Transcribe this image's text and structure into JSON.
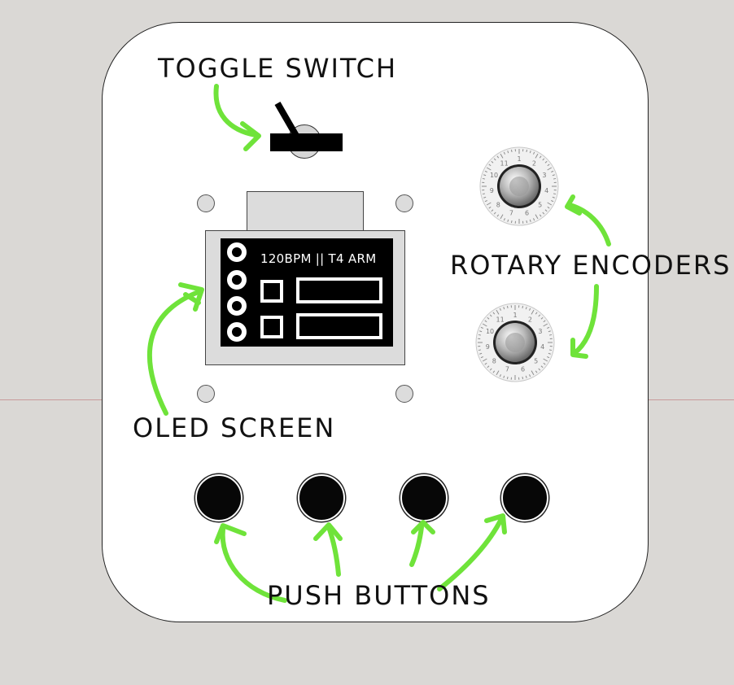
{
  "labels": {
    "toggle_switch": "TOGGLE SWITCH",
    "rotary_encoders": "ROTARY ENCODERS",
    "oled_screen": "OLED SCREEN",
    "push_buttons": "PUSH BUTTONS"
  },
  "oled": {
    "status_text": "120BPM || T4 ARM"
  },
  "encoder_dial_numbers": [
    "1",
    "2",
    "3",
    "4",
    "5",
    "6",
    "7",
    "8",
    "9",
    "10",
    "11"
  ],
  "colors": {
    "background": "#dad8d5",
    "panel": "#ffffff",
    "annotation_arrow": "#6fe33a",
    "oled_background": "#000000",
    "button": "#070707"
  }
}
